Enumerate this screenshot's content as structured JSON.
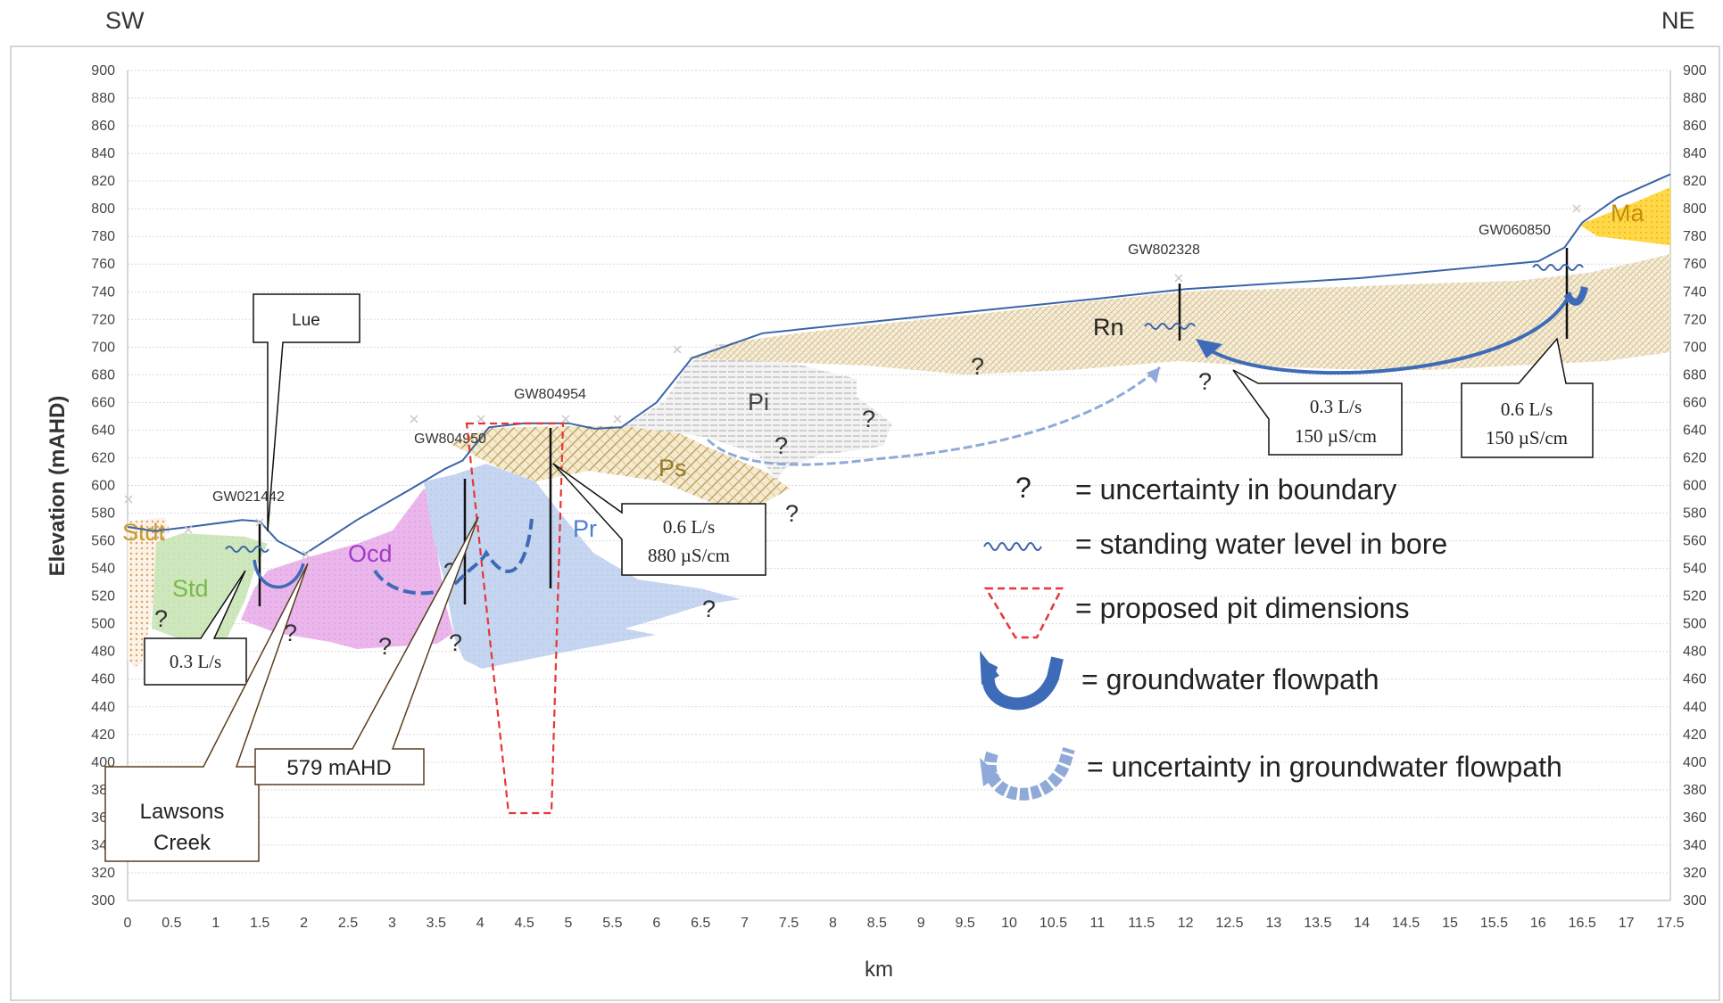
{
  "direction_labels": {
    "left": "SW",
    "right": "NE"
  },
  "chart_data": {
    "type": "cross-section",
    "xlabel": "km",
    "ylabel": "Elevation (mAHD)",
    "xlim": [
      0,
      17.5
    ],
    "ylim": [
      300,
      900
    ],
    "x_ticks": [
      "0",
      "0.5",
      "1",
      "1.5",
      "2",
      "2.5",
      "3",
      "3.5",
      "4",
      "4.5",
      "5",
      "5.5",
      "6",
      "6.5",
      "7",
      "7.5",
      "8",
      "8.5",
      "9",
      "9.5",
      "10",
      "10.5",
      "11",
      "11.5",
      "12",
      "12.5",
      "13",
      "13.5",
      "14",
      "14.5",
      "15",
      "15.5",
      "16",
      "16.5",
      "17",
      "17.5"
    ],
    "y_ticks": [
      "300",
      "320",
      "340",
      "360",
      "380",
      "400",
      "420",
      "440",
      "460",
      "480",
      "500",
      "520",
      "540",
      "560",
      "580",
      "600",
      "620",
      "640",
      "660",
      "680",
      "700",
      "720",
      "740",
      "760",
      "780",
      "800",
      "820",
      "840",
      "860",
      "880",
      "900"
    ],
    "grid": true,
    "ground_surface": [
      [
        0,
        570
      ],
      [
        0.3,
        567
      ],
      [
        0.7,
        570
      ],
      [
        1.3,
        575
      ],
      [
        1.5,
        574
      ],
      [
        1.7,
        560
      ],
      [
        2.0,
        550
      ],
      [
        2.6,
        575
      ],
      [
        3.2,
        597
      ],
      [
        3.6,
        612
      ],
      [
        3.8,
        618
      ],
      [
        4.1,
        642
      ],
      [
        4.5,
        645
      ],
      [
        5.0,
        645
      ],
      [
        5.3,
        641
      ],
      [
        5.6,
        642
      ],
      [
        6.0,
        660
      ],
      [
        6.4,
        692
      ],
      [
        7.2,
        710
      ],
      [
        9,
        722
      ],
      [
        11,
        735
      ],
      [
        12,
        742
      ],
      [
        14,
        750
      ],
      [
        16,
        762
      ],
      [
        16.3,
        772
      ],
      [
        16.5,
        790
      ],
      [
        16.9,
        808
      ],
      [
        17.5,
        825
      ]
    ],
    "units": [
      {
        "name": "Stdt",
        "color": "#c59b34"
      },
      {
        "name": "Std",
        "color": "#78b94a"
      },
      {
        "name": "Ocd",
        "color": "#a23bc9"
      },
      {
        "name": "Pr",
        "color": "#4d7cd0"
      },
      {
        "name": "Ps",
        "color": "#9a7b2a"
      },
      {
        "name": "Pi",
        "color": "#444444"
      },
      {
        "name": "Rn",
        "color": "#222222"
      },
      {
        "name": "Ma",
        "color": "#c58b0a"
      }
    ],
    "bores": [
      {
        "name": "GW021442",
        "label": "GW021442",
        "x": 1.5,
        "top": 575,
        "bottom": 518,
        "swl": 555
      },
      {
        "name": "GW804950",
        "label": "GW804950",
        "x": 3.8,
        "top": 618,
        "bottom": 518
      },
      {
        "name": "GW804954",
        "label": "GW804954",
        "x": 4.8,
        "top": 645,
        "bottom": 525
      },
      {
        "name": "GW802328",
        "label": "GW802328",
        "x": 11.9,
        "top": 745,
        "bottom": 705,
        "swl": 715
      },
      {
        "name": "GW060850",
        "label": "GW060850",
        "x": 16.3,
        "top": 772,
        "bottom": 690,
        "swl": 760
      }
    ],
    "pit_outline": [
      [
        3.85,
        645
      ],
      [
        5.15,
        645
      ],
      [
        4.8,
        363
      ],
      [
        4.3,
        363
      ]
    ],
    "callouts": {
      "lue": "Lue",
      "q_1_5": "0.3 L/s",
      "lawsons_line1": "Lawsons",
      "lawsons_line2": "Creek",
      "mahd": "579 mAHD",
      "q_4_8_line1": "0.6 L/s",
      "q_4_8_line2": "880 µS/cm",
      "q_12_line1": "0.3 L/s",
      "q_12_line2": "150 µS/cm",
      "q_16_line1": "0.6 L/s",
      "q_16_line2": "150 µS/cm"
    },
    "uncertainty_marks": "?"
  },
  "legend": {
    "uncertainty": "= uncertainty in boundary",
    "swl": "= standing water level in bore",
    "pit": "= proposed pit dimensions",
    "flow": "= groundwater flowpath",
    "flow_uncertain": "= uncertainty in groundwater flowpath",
    "question_mark": "?"
  },
  "colors": {
    "surface": "#3a64a8",
    "flow": "#3e6bb7",
    "flow_uncertain": "#8faad8",
    "pit": "#e83535",
    "grid": "#d9d9d9"
  }
}
